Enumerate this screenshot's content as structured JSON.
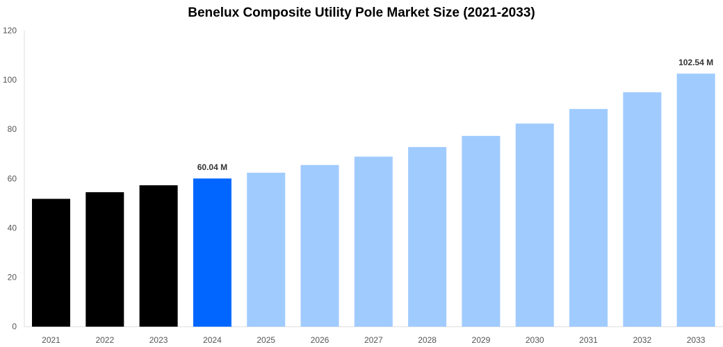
{
  "chart_data": {
    "type": "bar",
    "title": "Benelux Composite Utility Pole Market Size (2021-2033)",
    "categories": [
      "2021",
      "2022",
      "2023",
      "2024",
      "2025",
      "2026",
      "2027",
      "2028",
      "2029",
      "2030",
      "2031",
      "2032",
      "2033"
    ],
    "values": [
      51.8,
      54.5,
      57.3,
      60.04,
      62.4,
      65.5,
      68.9,
      72.8,
      77.3,
      82.3,
      88.2,
      95.0,
      102.54
    ],
    "data_labels": {
      "3": "60.04 M",
      "12": "102.54 M"
    },
    "colors": [
      "#000000",
      "#000000",
      "#000000",
      "#0066ff",
      "#a0cbff",
      "#a0cbff",
      "#a0cbff",
      "#a0cbff",
      "#a0cbff",
      "#a0cbff",
      "#a0cbff",
      "#a0cbff",
      "#a0cbff"
    ],
    "xlabel": "",
    "ylabel": "",
    "ylim": [
      0,
      120
    ],
    "yticks": [
      0,
      20,
      40,
      60,
      80,
      100,
      120
    ],
    "grid": false,
    "legend": "none"
  }
}
